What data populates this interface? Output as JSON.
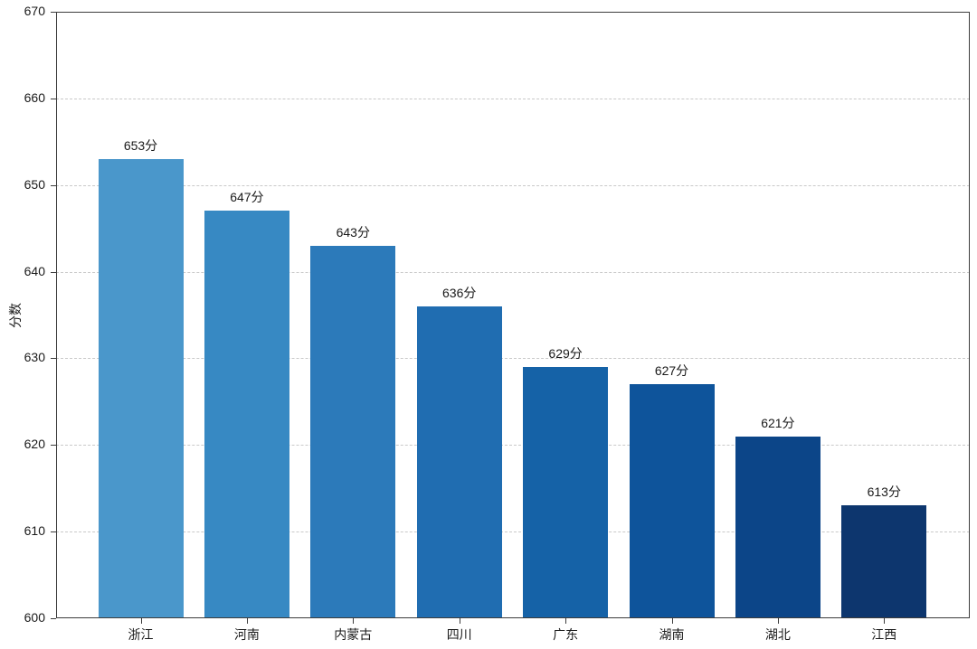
{
  "page": {
    "background": "#ffffff"
  },
  "chart_data": {
    "type": "bar",
    "title": "",
    "xlabel": "",
    "ylabel": "分数",
    "categories": [
      "浙江",
      "河南",
      "内蒙古",
      "四川",
      "广东",
      "湖南",
      "湖北",
      "江西"
    ],
    "values": [
      653,
      647,
      643,
      636,
      629,
      627,
      621,
      613
    ],
    "bar_labels": [
      "653分",
      "647分",
      "643分",
      "636分",
      "629分",
      "627分",
      "621分",
      "613分"
    ],
    "bar_colors": [
      "#4a97cb",
      "#3789c3",
      "#2c7aba",
      "#206db1",
      "#1562a7",
      "#0e549b",
      "#0c4588",
      "#0d366e"
    ],
    "ylim": [
      600,
      670
    ],
    "yticks": [
      600,
      610,
      620,
      630,
      640,
      650,
      660,
      670
    ],
    "grid": "horizontal-dashed",
    "grid_color": "#c9c9c9",
    "axis_color": "#3c3c3c",
    "text_color": "#1a1a1a",
    "legend": null
  }
}
